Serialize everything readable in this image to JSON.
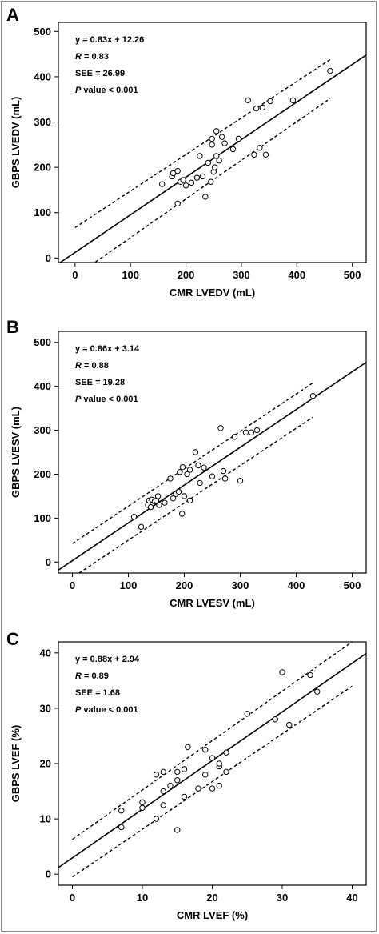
{
  "chart_data": [
    {
      "panel_label": "A",
      "type": "scatter",
      "xlabel": "CMR LVEDV (mL)",
      "ylabel": "GBPS LVEDV (mL)",
      "xlim": [
        -30,
        525
      ],
      "ylim": [
        -10,
        520
      ],
      "xticks": [
        0,
        100,
        200,
        300,
        400,
        500
      ],
      "yticks": [
        0,
        100,
        200,
        300,
        400,
        500
      ],
      "stats": [
        "y = 0.83x + 12.26",
        "R = 0.83",
        "SEE = 26.99",
        "P value < 0.001"
      ],
      "regression": {
        "slope": 0.83,
        "intercept": 12.26
      },
      "ci_lower": [
        [
          12,
          -30
        ],
        [
          460,
          352
        ]
      ],
      "ci_upper": [
        [
          0,
          67
        ],
        [
          460,
          438
        ]
      ],
      "x": [
        157,
        175,
        177,
        185,
        185,
        190,
        195,
        200,
        210,
        220,
        225,
        230,
        235,
        240,
        245,
        247,
        247,
        250,
        252,
        255,
        255,
        260,
        265,
        270,
        285,
        295,
        312,
        323,
        327,
        333,
        338,
        344,
        352,
        393,
        460
      ],
      "y": [
        163,
        180,
        187,
        192,
        120,
        168,
        172,
        160,
        166,
        177,
        225,
        180,
        135,
        210,
        168,
        250,
        263,
        190,
        200,
        280,
        225,
        215,
        267,
        253,
        240,
        263,
        348,
        228,
        330,
        243,
        332,
        228,
        346,
        348,
        413
      ]
    },
    {
      "panel_label": "B",
      "type": "scatter",
      "xlabel": "CMR LVESV (mL)",
      "ylabel": "GBPS LVESV (mL)",
      "xlim": [
        -25,
        525
      ],
      "ylim": [
        -25,
        525
      ],
      "xticks": [
        0,
        100,
        200,
        300,
        400,
        500
      ],
      "yticks": [
        0,
        100,
        200,
        300,
        400,
        500
      ],
      "stats": [
        "y = 0.86x + 3.14",
        "R = 0.88",
        "SEE = 19.28",
        "P value < 0.001"
      ],
      "regression": {
        "slope": 0.86,
        "intercept": 3.14
      },
      "ci_lower": [
        [
          12,
          -25
        ],
        [
          430,
          330
        ]
      ],
      "ci_upper": [
        [
          0,
          42
        ],
        [
          430,
          408
        ]
      ],
      "x": [
        110,
        123,
        135,
        137,
        140,
        142,
        147,
        150,
        153,
        155,
        165,
        175,
        180,
        185,
        190,
        192,
        196,
        197,
        200,
        205,
        210,
        210,
        220,
        225,
        228,
        235,
        250,
        265,
        270,
        273,
        290,
        300,
        310,
        320,
        330,
        430
      ],
      "y": [
        103,
        80,
        130,
        140,
        125,
        142,
        138,
        140,
        150,
        130,
        135,
        190,
        145,
        155,
        160,
        205,
        110,
        216,
        150,
        200,
        140,
        210,
        250,
        220,
        180,
        215,
        195,
        305,
        207,
        190,
        285,
        185,
        295,
        295,
        300,
        378
      ]
    },
    {
      "panel_label": "C",
      "type": "scatter",
      "xlabel": "CMR LVEF (%)",
      "ylabel": "GBPS LVEF (%)",
      "xlim": [
        -2,
        42
      ],
      "ylim": [
        -2,
        42
      ],
      "xticks": [
        0,
        10,
        20,
        30,
        40
      ],
      "yticks": [
        0,
        10,
        20,
        30,
        40
      ],
      "stats": [
        "y = 0.88x + 2.94",
        "R = 0.89",
        "SEE = 1.68",
        "P value < 0.001"
      ],
      "regression": {
        "slope": 0.88,
        "intercept": 2.94
      },
      "ci_lower": [
        [
          0,
          -0.5
        ],
        [
          40,
          34
        ]
      ],
      "ci_upper": [
        [
          0,
          6.3
        ],
        [
          40,
          42
        ]
      ],
      "x": [
        7,
        7,
        10,
        10,
        12,
        12,
        13,
        13,
        13,
        14,
        15,
        15,
        15,
        16,
        16,
        16.5,
        18,
        19,
        19,
        20,
        20,
        21,
        21,
        21,
        22,
        22,
        25,
        29,
        30,
        31,
        34,
        35
      ],
      "y": [
        8.5,
        11.5,
        12,
        13,
        10,
        18,
        12.5,
        15,
        18.5,
        16,
        8,
        17,
        18.5,
        14,
        19,
        23,
        15.5,
        18,
        22.5,
        15.5,
        21,
        16,
        19.5,
        20,
        18.5,
        22,
        29,
        28,
        36.5,
        27,
        36,
        33
      ]
    }
  ]
}
